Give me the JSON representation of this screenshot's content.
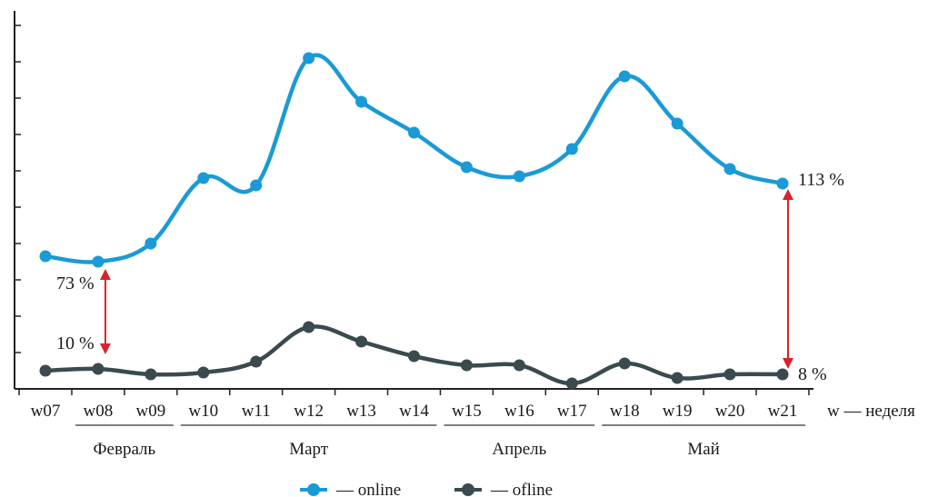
{
  "chart_data": {
    "type": "line",
    "categories": [
      "w07",
      "w08",
      "w09",
      "w10",
      "w11",
      "w12",
      "w13",
      "w14",
      "w15",
      "w16",
      "w17",
      "w18",
      "w19",
      "w20",
      "w21"
    ],
    "xlabel": "w — неделя",
    "months": [
      {
        "label": "Февраль",
        "from": "w08",
        "to": "w09"
      },
      {
        "label": "Март",
        "from": "w10",
        "to": "w14"
      },
      {
        "label": "Апрель",
        "from": "w15",
        "to": "w17"
      },
      {
        "label": "Май",
        "from": "w18",
        "to": "w21"
      }
    ],
    "ylim": [
      0,
      100
    ],
    "y_ticks": 10,
    "series": [
      {
        "name": "online",
        "color": "#1a9ad6",
        "values": [
          36.5,
          35,
          40,
          58,
          56,
          91,
          79,
          70.5,
          61,
          58.5,
          66,
          86,
          73,
          60.5,
          56.5
        ]
      },
      {
        "name": "ofline",
        "color": "#3a4a4e",
        "values": [
          5,
          5.5,
          4,
          4.5,
          7.5,
          17,
          13,
          9,
          6.5,
          6.5,
          1.5,
          7,
          3,
          4,
          4
        ]
      }
    ],
    "legend": {
      "placement": "bottom-center",
      "online_label": "— online",
      "ofline_label": "— ofline"
    },
    "annotations": [
      {
        "text": "73 %",
        "category": "w08",
        "series": "online"
      },
      {
        "text": "10 %",
        "category": "w08",
        "series": "ofline"
      },
      {
        "text": "113 %",
        "category": "w21",
        "series": "online"
      },
      {
        "text": "8 %",
        "category": "w21",
        "series": "ofline"
      }
    ],
    "arrow_color": "#d8232a"
  }
}
